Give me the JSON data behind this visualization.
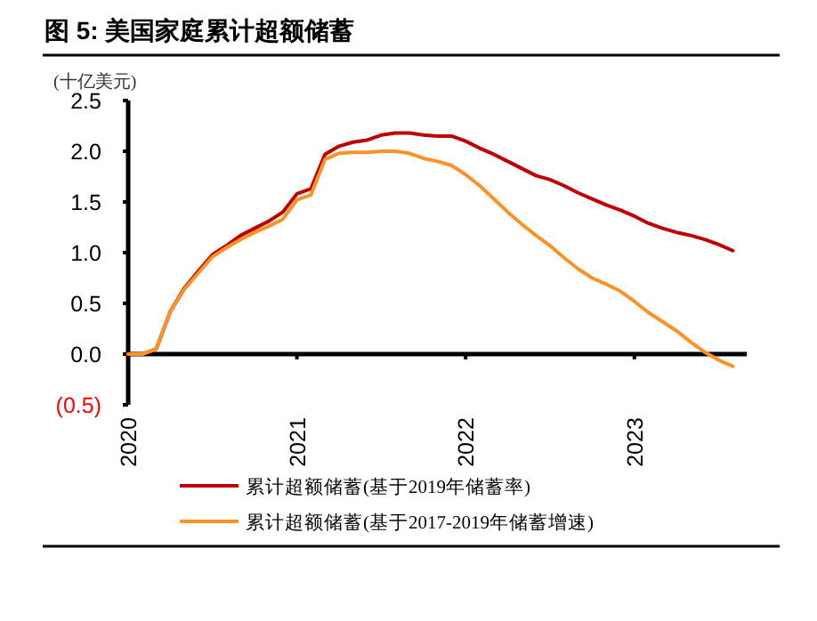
{
  "chart_data": {
    "type": "line",
    "title": "图 5: 美国家庭累计超额储蓄",
    "ylabel": "(十亿美元)",
    "x": [
      "2020-01",
      "2020-02",
      "2020-03",
      "2020-04",
      "2020-05",
      "2020-06",
      "2020-07",
      "2020-08",
      "2020-09",
      "2020-10",
      "2020-11",
      "2020-12",
      "2021-01",
      "2021-02",
      "2021-03",
      "2021-04",
      "2021-05",
      "2021-06",
      "2021-07",
      "2021-08",
      "2021-09",
      "2021-10",
      "2021-11",
      "2021-12",
      "2022-01",
      "2022-02",
      "2022-03",
      "2022-04",
      "2022-05",
      "2022-06",
      "2022-07",
      "2022-08",
      "2022-09",
      "2022-10",
      "2022-11",
      "2022-12",
      "2023-01",
      "2023-02",
      "2023-03",
      "2023-04",
      "2023-05",
      "2023-06",
      "2023-07",
      "2023-08"
    ],
    "series": [
      {
        "name": "累计超额储蓄(基于2019年储蓄率)",
        "color": "#c00000",
        "values": [
          0,
          0,
          0.05,
          0.42,
          0.65,
          0.82,
          0.98,
          1.07,
          1.17,
          1.24,
          1.31,
          1.4,
          1.58,
          1.63,
          1.97,
          2.05,
          2.09,
          2.11,
          2.16,
          2.18,
          2.18,
          2.16,
          2.15,
          2.15,
          2.1,
          2.03,
          1.97,
          1.9,
          1.83,
          1.76,
          1.72,
          1.66,
          1.59,
          1.53,
          1.47,
          1.42,
          1.36,
          1.29,
          1.24,
          1.2,
          1.17,
          1.13,
          1.08,
          1.02
        ]
      },
      {
        "name": "累计超额储蓄(基于2017-2019年储蓄增速)",
        "color": "#ff9224",
        "values": [
          0,
          0,
          0.05,
          0.42,
          0.64,
          0.8,
          0.96,
          1.05,
          1.13,
          1.2,
          1.26,
          1.33,
          1.52,
          1.57,
          1.92,
          1.98,
          1.99,
          1.99,
          2.0,
          2.0,
          1.98,
          1.93,
          1.9,
          1.86,
          1.77,
          1.66,
          1.53,
          1.4,
          1.28,
          1.17,
          1.07,
          0.95,
          0.84,
          0.75,
          0.69,
          0.62,
          0.52,
          0.41,
          0.32,
          0.23,
          0.12,
          0.02,
          -0.06,
          -0.12
        ]
      }
    ],
    "xlim": [
      "2020-01",
      "2023-09"
    ],
    "xticks": [
      {
        "value": "2020-01",
        "label": "2020"
      },
      {
        "value": "2021-01",
        "label": "2021"
      },
      {
        "value": "2022-01",
        "label": "2022"
      },
      {
        "value": "2023-01",
        "label": "2023"
      }
    ],
    "ylim": [
      -0.5,
      2.5
    ],
    "yticks": [
      {
        "value": -0.5,
        "label": "(0.5)"
      },
      {
        "value": 0,
        "label": "0.0"
      },
      {
        "value": 0.5,
        "label": "0.5"
      },
      {
        "value": 1,
        "label": "1.0"
      },
      {
        "value": 1.5,
        "label": "1.5"
      },
      {
        "value": 2,
        "label": "2.0"
      },
      {
        "value": 2.5,
        "label": "2.5"
      }
    ],
    "legend": "bottom",
    "marker": "none",
    "line_style": "solid"
  }
}
